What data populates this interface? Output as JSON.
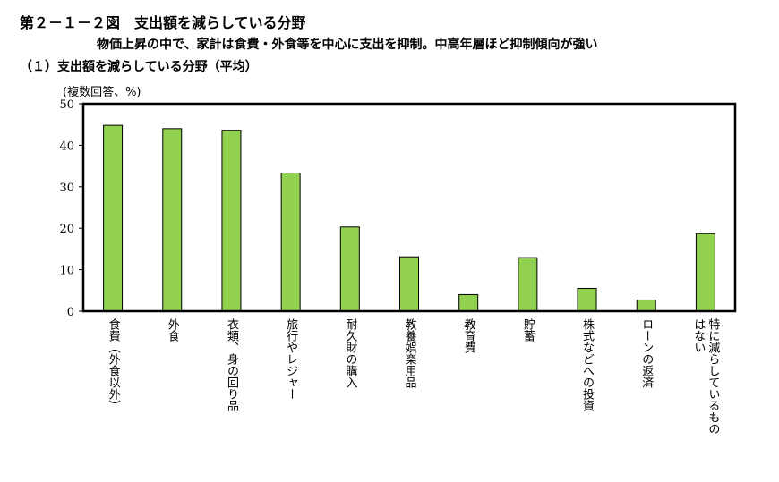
{
  "header": {
    "figure_title": "第２－１－２図　支出額を減らしている分野",
    "subtitle": "物価上昇の中で、家計は食費・外食等を中心に支出を抑制。中高年層ほど抑制傾向が強い",
    "panel_title": "（１）支出額を減らしている分野（平均）"
  },
  "chart_data": {
    "type": "bar",
    "unit_label": "(複数回答、%)",
    "categories": [
      [
        "食費（外食以外）"
      ],
      [
        "外食"
      ],
      [
        "衣類、身の回り品"
      ],
      [
        "旅行やレジャー"
      ],
      [
        "耐久財の購入"
      ],
      [
        "教養娯楽用品"
      ],
      [
        "教育費"
      ],
      [
        "貯蓄"
      ],
      [
        "株式などへの投資"
      ],
      [
        "ローンの返済"
      ],
      [
        "特に減らしているもの",
        "はない"
      ]
    ],
    "values": [
      44.8,
      44.0,
      43.6,
      33.3,
      20.3,
      13.1,
      4.0,
      12.9,
      5.5,
      2.7,
      18.7
    ],
    "ylim": [
      0,
      50
    ],
    "yticks": [
      0,
      10,
      20,
      30,
      40,
      50
    ],
    "bar_color": "#92d050",
    "bar_edge_color": "#000000",
    "grid": false
  }
}
